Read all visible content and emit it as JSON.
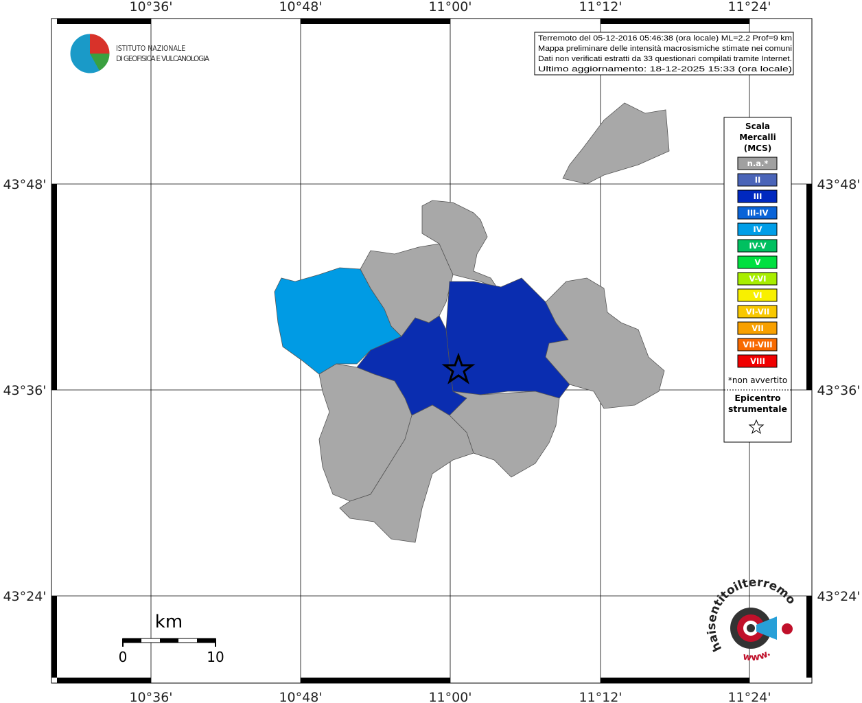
{
  "longitude_labels": [
    "10°36'",
    "10°48'",
    "11°00'",
    "11°12'",
    "11°24'"
  ],
  "latitude_labels": [
    "43°48'",
    "43°36'",
    "43°24'"
  ],
  "logo": {
    "line1": "ISTITUTO NAZIONALE",
    "line2": "DI GEOFISICA E VULCANOLOGIA"
  },
  "info": [
    "Terremoto del 05-12-2016 05:46:38 (ora locale) ML=2.2 Prof=9 km",
    "Mappa preliminare delle intensità macrosismiche stimate nei comuni",
    "Dati non verificati estratti da 33 questionari compilati tramite Internet.",
    "Ultimo aggiornamento: 18-12-2025 15:33 (ora locale)"
  ],
  "legend": {
    "title": [
      "Scala",
      "Mercalli",
      "(MCS)"
    ],
    "items": [
      {
        "label": "n.a.*",
        "color": "#a0a0a0"
      },
      {
        "label": "II",
        "color": "#4a64b8"
      },
      {
        "label": "III",
        "color": "#0028bf"
      },
      {
        "label": "III-IV",
        "color": "#0a64d8"
      },
      {
        "label": "IV",
        "color": "#009ee8"
      },
      {
        "label": "IV-V",
        "color": "#00c060"
      },
      {
        "label": "V",
        "color": "#00e040"
      },
      {
        "label": "V-VI",
        "color": "#a8ee00"
      },
      {
        "label": "VI",
        "color": "#f8f000"
      },
      {
        "label": "VI-VII",
        "color": "#f8c800"
      },
      {
        "label": "VII",
        "color": "#f8a000"
      },
      {
        "label": "VII-VIII",
        "color": "#f86a00"
      },
      {
        "label": "VIII",
        "color": "#f00000"
      }
    ],
    "note": "*non avvertito",
    "epicenter": [
      "Epicentro",
      "strumentale"
    ]
  },
  "scale_bar": {
    "unit": "km",
    "start": "0",
    "end": "10"
  },
  "badge": {
    "site": "haisentitoilterremoto.it",
    "prefix": "www."
  }
}
